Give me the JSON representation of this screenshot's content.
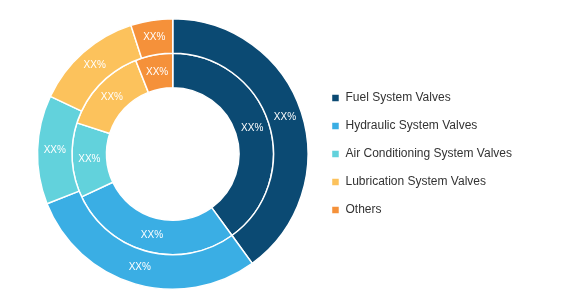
{
  "chart_data": {
    "type": "doughnut",
    "categories": [
      "Fuel System Valves",
      "Hydraulic System Valves",
      "Air Conditioning System Valves",
      "Lubrication System Valves",
      "Others"
    ],
    "colors": [
      "#0b4a73",
      "#3aaee4",
      "#62d2dc",
      "#fcc25c",
      "#f5913a"
    ],
    "series": [
      {
        "values": [
          40,
          29,
          13,
          13,
          5
        ],
        "value_labels": [
          "XX%",
          "XX%",
          "XX%",
          "XX%",
          "XX%"
        ]
      },
      {
        "values": [
          40,
          28,
          12,
          14,
          6
        ],
        "value_labels": [
          "XX%",
          "XX%",
          "XX%",
          "XX%",
          "XX%"
        ]
      }
    ],
    "data_labels": true,
    "legend": "right"
  }
}
